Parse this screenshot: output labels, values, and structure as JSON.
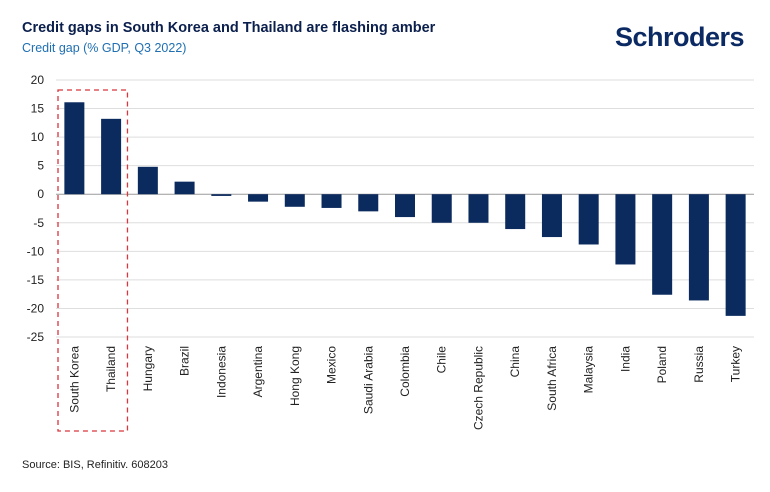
{
  "header": {
    "title": "Credit gaps in South Korea and Thailand are flashing amber",
    "subtitle": "Credit gap (% GDP, Q3 2022)",
    "logo_text": "Schroders"
  },
  "footer": {
    "source": "Source: BIS, Refinitiv. 608203"
  },
  "chart_data": {
    "type": "bar",
    "title": "Credit gaps in South Korea and Thailand are flashing amber",
    "subtitle": "Credit gap (% GDP, Q3 2022)",
    "xlabel": "",
    "ylabel": "",
    "categories": [
      "South Korea",
      "Thailand",
      "Hungary",
      "Brazil",
      "Indonesia",
      "Argentina",
      "Hong Kong",
      "Mexico",
      "Saudi Arabia",
      "Colombia",
      "Chile",
      "Czech Republic",
      "China",
      "South Africa",
      "Malaysia",
      "India",
      "Poland",
      "Russia",
      "Turkey"
    ],
    "values": [
      16.1,
      13.2,
      4.8,
      2.2,
      -0.3,
      -1.3,
      -2.2,
      -2.4,
      -3.0,
      -4.0,
      -5.0,
      -5.0,
      -6.1,
      -7.5,
      -8.8,
      -12.3,
      -17.6,
      -18.6,
      -21.3
    ],
    "ylim": [
      -25,
      20
    ],
    "yticks": [
      20,
      15,
      10,
      5,
      0,
      -5,
      -10,
      -15,
      -20,
      -25
    ],
    "grid": true,
    "bar_color": "#0b2a5e",
    "highlight": {
      "categories": [
        "South Korea",
        "Thailand"
      ],
      "style": "dashed-box",
      "color": "#d9363e"
    }
  }
}
